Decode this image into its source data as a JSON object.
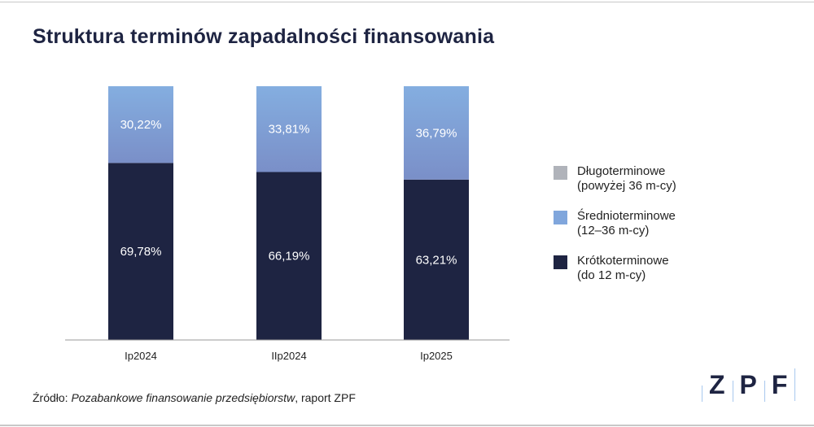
{
  "title": "Struktura terminów zapadalności finansowania",
  "chart_data": {
    "type": "bar",
    "stacked": true,
    "title": "Struktura terminów zapadalności finansowania",
    "categories": [
      "Ip2024",
      "IIp2024",
      "Ip2025"
    ],
    "ylim": [
      0,
      100
    ],
    "grid": false,
    "legend_placement": "right",
    "series": [
      {
        "name": "Krótkoterminowe (do 12 m-cy)",
        "color": "#1e2442",
        "values": [
          69.78,
          66.19,
          63.21
        ],
        "labels": [
          "69,78%",
          "66,19%",
          "63,21%"
        ]
      },
      {
        "name": "Średnioterminowe (12–36 m-cy)",
        "color": "#80a6dc",
        "values": [
          30.22,
          33.81,
          36.79
        ],
        "labels": [
          "30,22%",
          "33,81%",
          "36,79%"
        ]
      },
      {
        "name": "Długoterminowe (powyżej 36 m-cy)",
        "color": "#b0b3ba",
        "values": [
          0,
          0,
          0
        ]
      }
    ]
  },
  "legend": [
    {
      "line1": "Długoterminowe",
      "line2": "(powyżej 36 m-cy)",
      "color": "#b0b3ba"
    },
    {
      "line1": "Średnioterminowe",
      "line2": "(12–36 m-cy)",
      "color": "#80a6dc"
    },
    {
      "line1": "Krótkoterminowe",
      "line2": "(do 12 m-cy)",
      "color": "#1e2442"
    }
  ],
  "source": {
    "prefix": "Źródło: ",
    "title": "Pozabankowe finansowanie przedsiębiorstw",
    "suffix": ", raport ZPF"
  },
  "logo": {
    "letters": [
      "Z",
      "P",
      "F"
    ]
  }
}
